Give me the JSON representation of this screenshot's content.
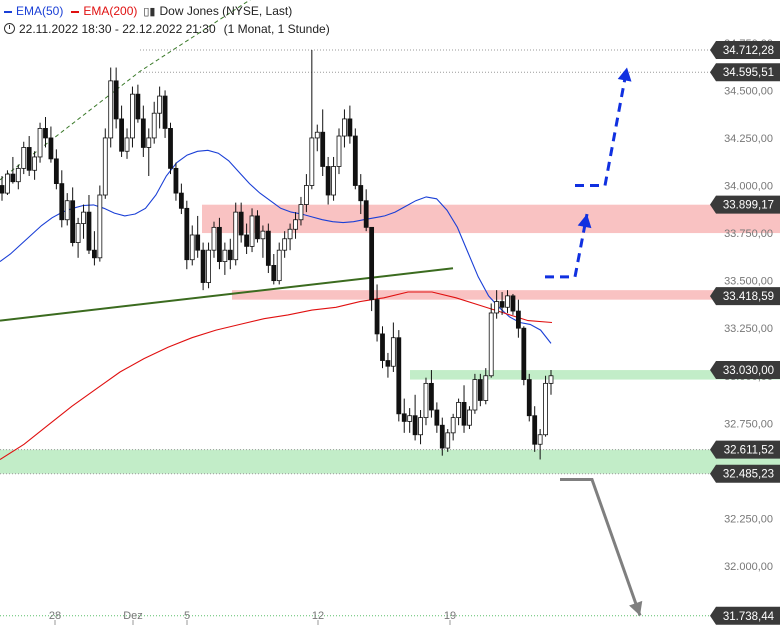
{
  "legend": {
    "ema50_label": "EMA(50)",
    "ema50_color": "#1a3fd6",
    "ema200_label": "EMA(200)",
    "ema200_color": "#e01010",
    "instrument": "Dow Jones (NYSE, Last)",
    "candle_icon": "candlestick-icon",
    "clock_icon": "clock-icon",
    "date_range": "22.11.2022 18:30 - 22.12.2022 21:30",
    "period": "(1 Monat, 1 Stunde)"
  },
  "chart_data": {
    "type": "candlestick",
    "title": "Dow Jones (NYSE, Last)",
    "x_tick_labels": [
      "28",
      "Dez",
      "5",
      "12",
      "19"
    ],
    "y_ticks": [
      {
        "value": 34750,
        "label": "34.750,00"
      },
      {
        "value": 34500,
        "label": "34.500,00"
      },
      {
        "value": 34250,
        "label": "34.250,00"
      },
      {
        "value": 34000,
        "label": "34.000,00"
      },
      {
        "value": 33750,
        "label": "33.750,00"
      },
      {
        "value": 33500,
        "label": "33.500,00"
      },
      {
        "value": 33250,
        "label": "33.250,00"
      },
      {
        "value": 33000,
        "label": "33.000,00"
      },
      {
        "value": 32750,
        "label": "32.750,00"
      },
      {
        "value": 32250,
        "label": "32.250,00"
      },
      {
        "value": 32000,
        "label": "32.000,00"
      }
    ],
    "ylim": [
      31690,
      34975
    ],
    "price_labels": [
      {
        "value": 34712.28,
        "label": "34.712,28",
        "line": "dotted-gray"
      },
      {
        "value": 34595.51,
        "label": "34.595,51",
        "line": "dotted-gray"
      },
      {
        "value": 33899.17,
        "label": "33.899,17",
        "line": "none"
      },
      {
        "value": 33418.59,
        "label": "33.418,59",
        "line": "none"
      },
      {
        "value": 33030.0,
        "label": "33.030,00",
        "line": "none"
      },
      {
        "value": 32611.52,
        "label": "32.611,52",
        "line": "dotted-gray"
      },
      {
        "value": 32485.23,
        "label": "32.485,23",
        "line": "dotted-gray"
      },
      {
        "value": 31738.44,
        "label": "31.738,44",
        "line": "dotted-green"
      }
    ],
    "zones": [
      {
        "name": "resistance-zone-upper",
        "low": 33750,
        "high": 33899.17,
        "color": "#f7a8a8"
      },
      {
        "name": "resistance-zone-lower",
        "low": 33400,
        "high": 33450,
        "color": "#f7a8a8"
      },
      {
        "name": "support-zone-upper",
        "low": 32980,
        "high": 33030,
        "color": "#a8e6b0"
      },
      {
        "name": "support-zone-lower",
        "low": 32485.23,
        "high": 32611.52,
        "color": "#a8e6b0"
      }
    ],
    "candles_ohlc": [
      [
        34000,
        34050,
        33920,
        33960
      ],
      [
        33960,
        34080,
        33950,
        34060
      ],
      [
        34060,
        34150,
        34010,
        34020
      ],
      [
        34020,
        34110,
        33980,
        34090
      ],
      [
        34090,
        34230,
        34060,
        34200
      ],
      [
        34200,
        34260,
        34050,
        34080
      ],
      [
        34080,
        34180,
        34030,
        34150
      ],
      [
        34150,
        34330,
        34120,
        34300
      ],
      [
        34300,
        34360,
        34200,
        34250
      ],
      [
        34250,
        34310,
        34120,
        34140
      ],
      [
        34140,
        34190,
        33980,
        34010
      ],
      [
        34010,
        34080,
        33780,
        33820
      ],
      [
        33820,
        33960,
        33790,
        33920
      ],
      [
        33920,
        33990,
        33680,
        33700
      ],
      [
        33700,
        33830,
        33620,
        33800
      ],
      [
        33800,
        33900,
        33720,
        33860
      ],
      [
        33860,
        33950,
        33640,
        33660
      ],
      [
        33660,
        33760,
        33580,
        33620
      ],
      [
        33620,
        34000,
        33600,
        33950
      ],
      [
        33950,
        34300,
        33930,
        34250
      ],
      [
        34250,
        34620,
        34200,
        34550
      ],
      [
        34550,
        34620,
        34300,
        34350
      ],
      [
        34350,
        34420,
        34150,
        34180
      ],
      [
        34180,
        34300,
        34140,
        34250
      ],
      [
        34250,
        34520,
        34200,
        34480
      ],
      [
        34480,
        34530,
        34330,
        34350
      ],
      [
        34350,
        34420,
        34150,
        34200
      ],
      [
        34200,
        34300,
        34050,
        34250
      ],
      [
        34250,
        34440,
        34220,
        34380
      ],
      [
        34380,
        34520,
        34300,
        34470
      ],
      [
        34470,
        34500,
        34250,
        34300
      ],
      [
        34300,
        34330,
        34060,
        34090
      ],
      [
        34090,
        34120,
        33920,
        33960
      ],
      [
        33960,
        34010,
        33850,
        33880
      ],
      [
        33880,
        33920,
        33560,
        33610
      ],
      [
        33610,
        33790,
        33580,
        33740
      ],
      [
        33740,
        33840,
        33620,
        33660
      ],
      [
        33660,
        33700,
        33450,
        33490
      ],
      [
        33490,
        33700,
        33460,
        33660
      ],
      [
        33660,
        33810,
        33620,
        33780
      ],
      [
        33780,
        33830,
        33560,
        33600
      ],
      [
        33600,
        33700,
        33530,
        33660
      ],
      [
        33660,
        33720,
        33560,
        33610
      ],
      [
        33610,
        33910,
        33580,
        33860
      ],
      [
        33860,
        33910,
        33700,
        33740
      ],
      [
        33740,
        33800,
        33640,
        33680
      ],
      [
        33680,
        33880,
        33650,
        33840
      ],
      [
        33840,
        33870,
        33700,
        33720
      ],
      [
        33720,
        33790,
        33620,
        33760
      ],
      [
        33760,
        33800,
        33540,
        33580
      ],
      [
        33580,
        33640,
        33480,
        33500
      ],
      [
        33500,
        33700,
        33480,
        33660
      ],
      [
        33660,
        33760,
        33620,
        33720
      ],
      [
        33720,
        33800,
        33660,
        33770
      ],
      [
        33770,
        33860,
        33720,
        33820
      ],
      [
        33820,
        33940,
        33790,
        33900
      ],
      [
        33900,
        34060,
        33860,
        34000
      ],
      [
        34000,
        34712.28,
        33980,
        34250
      ],
      [
        34250,
        34320,
        34180,
        34280
      ],
      [
        34280,
        34400,
        34050,
        34100
      ],
      [
        34100,
        34150,
        33900,
        33950
      ],
      [
        33950,
        34150,
        33920,
        34100
      ],
      [
        34100,
        34300,
        34060,
        34260
      ],
      [
        34260,
        34400,
        34200,
        34350
      ],
      [
        34350,
        34420,
        34220,
        34260
      ],
      [
        34260,
        34300,
        33980,
        34000
      ],
      [
        34000,
        34060,
        33850,
        33920
      ],
      [
        33920,
        33980,
        33760,
        33780
      ],
      [
        33780,
        33780,
        33340,
        33400
      ],
      [
        33400,
        33480,
        33180,
        33220
      ],
      [
        33220,
        33260,
        33040,
        33080
      ],
      [
        33080,
        33120,
        32990,
        33050
      ],
      [
        33050,
        33280,
        33020,
        33200
      ],
      [
        33200,
        33240,
        32760,
        32800
      ],
      [
        32800,
        32880,
        32700,
        32760
      ],
      [
        32760,
        32830,
        32700,
        32790
      ],
      [
        32790,
        32900,
        32660,
        32690
      ],
      [
        32690,
        32820,
        32640,
        32780
      ],
      [
        32780,
        32990,
        32740,
        32960
      ],
      [
        32960,
        33030,
        32780,
        32820
      ],
      [
        32820,
        32860,
        32700,
        32740
      ],
      [
        32740,
        32780,
        32580,
        32620
      ],
      [
        32620,
        32720,
        32600,
        32700
      ],
      [
        32700,
        32800,
        32660,
        32780
      ],
      [
        32780,
        32880,
        32740,
        32860
      ],
      [
        32860,
        32950,
        32700,
        32740
      ],
      [
        32740,
        32840,
        32720,
        32820
      ],
      [
        32820,
        33010,
        32800,
        32980
      ],
      [
        32980,
        33010,
        32840,
        32870
      ],
      [
        32870,
        33040,
        32850,
        33000
      ],
      [
        33000,
        33380,
        32990,
        33330
      ],
      [
        33330,
        33450,
        33300,
        33390
      ],
      [
        33390,
        33440,
        33320,
        33360
      ],
      [
        33360,
        33450,
        33330,
        33420
      ],
      [
        33420,
        33430,
        33320,
        33340
      ],
      [
        33340,
        33400,
        33200,
        33250
      ],
      [
        33250,
        33260,
        32950,
        32980
      ],
      [
        32980,
        33010,
        32760,
        32790
      ],
      [
        32790,
        32840,
        32600,
        32640
      ],
      [
        32640,
        32720,
        32560,
        32690
      ],
      [
        32690,
        33000,
        32680,
        32960
      ],
      [
        32960,
        33030,
        32900,
        33000
      ]
    ],
    "ema50": [
      33600,
      33640,
      33690,
      33740,
      33790,
      33830,
      33860,
      33880,
      33895,
      33898,
      33880,
      33855,
      33840,
      33850,
      33880,
      33950,
      34050,
      34120,
      34160,
      34180,
      34185,
      34170,
      34130,
      34070,
      34010,
      33960,
      33920,
      33880,
      33860,
      33850,
      33835,
      33820,
      33810,
      33805,
      33810,
      33820,
      33830,
      33840,
      33860,
      33890,
      33920,
      33940,
      33930,
      33870,
      33780,
      33650,
      33520,
      33420,
      33360,
      33310,
      33280,
      33270,
      33240,
      33170
    ],
    "ema200": [
      32560,
      32640,
      32740,
      32840,
      32930,
      33020,
      33090,
      33150,
      33200,
      33240,
      33270,
      33300,
      33320,
      33345,
      33360,
      33390,
      33410,
      33440,
      33440,
      33410,
      33370,
      33330,
      33290,
      33280
    ],
    "trendlines": [
      {
        "name": "long-trendline",
        "points": [
          [
            0,
            33290
          ],
          [
            453,
            33565
          ]
        ],
        "color": "#3b6b1f",
        "style": "solid"
      },
      {
        "name": "upper-trendline",
        "points": [
          [
            0,
            34030
          ],
          [
            140,
            34600
          ],
          [
            345,
            35300
          ]
        ],
        "color": "#3b7a2a",
        "style": "dashed"
      }
    ],
    "arrows": [
      {
        "name": "bullish-arrow-small",
        "from": [
          545,
          33520
        ],
        "via": [
          [
            575,
            33520
          ]
        ],
        "to": [
          587,
          33850
        ],
        "color": "#1030e0"
      },
      {
        "name": "bullish-arrow-large",
        "from": [
          575,
          34000
        ],
        "via": [
          [
            605,
            34000
          ]
        ],
        "to": [
          627,
          34620
        ],
        "color": "#1030e0"
      },
      {
        "name": "bearish-arrow",
        "from": [
          560,
          32455
        ],
        "via": [
          [
            592,
            32455
          ]
        ],
        "to": [
          640,
          31740
        ],
        "color": "#7f7f7f"
      }
    ]
  }
}
